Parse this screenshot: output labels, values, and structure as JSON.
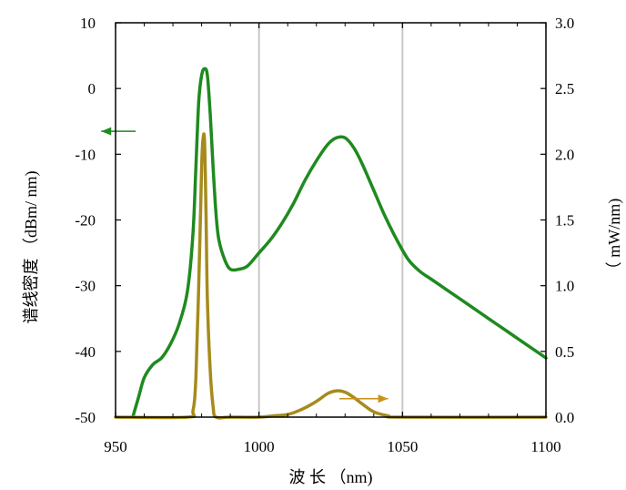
{
  "chart_data": {
    "type": "line",
    "xlabel": "波 长 （nm)",
    "ylabel_left": "谱线密度 （dBm/ nm)",
    "ylabel_right": "（ mW/nm)",
    "xlim": [
      950,
      1100
    ],
    "ylim_left": [
      -50,
      10
    ],
    "ylim_right": [
      0.0,
      3.0
    ],
    "x_ticks": [
      "950",
      "1000",
      "1050",
      "1100"
    ],
    "y_left_ticks": [
      "10",
      "0",
      "-10",
      "-20",
      "-30",
      "-40",
      "-50"
    ],
    "y_right_ticks": [
      "3.0",
      "2.5",
      "2.0",
      "1.5",
      "1.0",
      "0.5",
      "0.0"
    ],
    "grid": true,
    "series": [
      {
        "axis": "left",
        "color": "#1f8a1f",
        "x": [
          956,
          958,
          960,
          963,
          966,
          969,
          972,
          975,
          977,
          978,
          979,
          980,
          981,
          982,
          983,
          984,
          985,
          986,
          988,
          990,
          993,
          996,
          1000,
          1004,
          1008,
          1012,
          1016,
          1020,
          1024,
          1027,
          1030,
          1033,
          1036,
          1040,
          1044,
          1048,
          1052,
          1056,
          1060,
          1065,
          1070,
          1075,
          1080,
          1085,
          1090,
          1095,
          1100
        ],
        "values": [
          -50,
          -47,
          -44,
          -42,
          -41,
          -39,
          -36,
          -31,
          -22,
          -12,
          -2,
          2,
          3,
          2,
          -4,
          -12,
          -19,
          -23,
          -26,
          -27.5,
          -27.5,
          -27,
          -25,
          -23,
          -20.5,
          -17.5,
          -14,
          -11,
          -8.5,
          -7.5,
          -7.5,
          -9,
          -11.5,
          -15.5,
          -19.5,
          -23,
          -26,
          -27.8,
          -29,
          -30.5,
          -32,
          -33.5,
          -35,
          -36.5,
          -38,
          -39.5,
          -41
        ]
      },
      {
        "axis": "right",
        "color": "#a68b1c",
        "x": [
          950,
          975,
          977,
          978,
          979,
          980,
          980.5,
          981,
          981.5,
          982,
          983,
          984,
          985,
          990,
          1000,
          1005,
          1010,
          1015,
          1020,
          1024,
          1027,
          1030,
          1033,
          1036,
          1040,
          1045,
          1050,
          1100
        ],
        "values": [
          0.0,
          0.0,
          0.05,
          0.3,
          1.0,
          1.9,
          2.12,
          2.1,
          1.6,
          0.9,
          0.35,
          0.08,
          0.0,
          0.0,
          0.0,
          0.01,
          0.02,
          0.06,
          0.12,
          0.18,
          0.2,
          0.19,
          0.15,
          0.1,
          0.04,
          0.01,
          0.0,
          0.0
        ]
      }
    ],
    "annotations": [
      {
        "type": "arrow",
        "direction": "left",
        "color": "#1f8a1f",
        "axis": "left",
        "x_from": 957,
        "x_to": 945,
        "y": -6.5
      },
      {
        "type": "arrow",
        "direction": "right",
        "color": "#c9921c",
        "axis": "right",
        "x_from": 1028,
        "x_to": 1045,
        "y": 0.14
      }
    ]
  }
}
